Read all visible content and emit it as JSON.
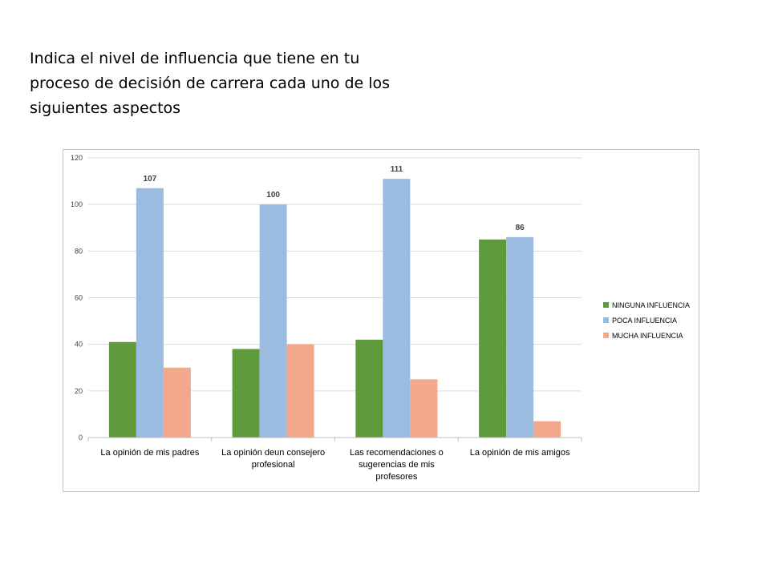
{
  "slide": {
    "title": "Indica el nivel de influencia que tiene en tu\nproceso de decisión de carrera cada uno de los\nsiguientes aspectos"
  },
  "chart_data": {
    "type": "bar",
    "categories": [
      [
        "La opinión de mis padres"
      ],
      [
        "La opinión deun consejero",
        "profesional"
      ],
      [
        "Las recomendaciones o",
        "sugerencias de mis",
        "profesores"
      ],
      [
        "La opinión de mis amigos"
      ]
    ],
    "series": [
      {
        "name": "NINGUNA INFLUENCIA",
        "color": "#5e9a3c",
        "values": [
          41,
          38,
          42,
          85
        ]
      },
      {
        "name": "POCA INFLUENCIA",
        "color": "#9bbbe0",
        "values": [
          107,
          100,
          111,
          86
        ],
        "labels": [
          "107",
          "100",
          "111",
          "86"
        ]
      },
      {
        "name": "MUCHA INFLUENCIA",
        "color": "#f2a98b",
        "values": [
          30,
          40,
          25,
          7
        ]
      }
    ],
    "ylim": [
      0,
      120
    ],
    "yticks": [
      0,
      20,
      40,
      60,
      80,
      100,
      120
    ],
    "grid": true,
    "legend": "right"
  }
}
